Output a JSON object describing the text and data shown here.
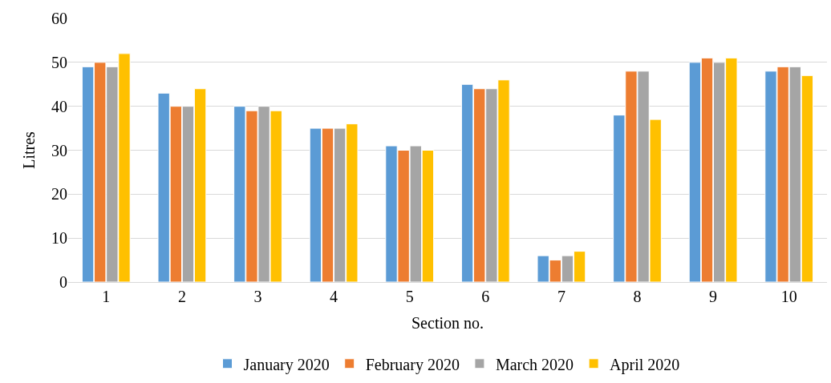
{
  "chart_data": {
    "type": "bar",
    "xlabel": "Section no.",
    "ylabel": "Litres",
    "categories": [
      "1",
      "2",
      "3",
      "4",
      "5",
      "6",
      "7",
      "8",
      "9",
      "10"
    ],
    "series": [
      {
        "name": "January 2020",
        "color": "#5b9bd5",
        "values": [
          49,
          43,
          40,
          35,
          31,
          45,
          6,
          38,
          50,
          48
        ]
      },
      {
        "name": "February 2020",
        "color": "#ed7d31",
        "values": [
          50,
          40,
          39,
          35,
          30,
          44,
          5,
          48,
          51,
          49
        ]
      },
      {
        "name": "March 2020",
        "color": "#a5a5a5",
        "values": [
          49,
          40,
          40,
          35,
          31,
          44,
          6,
          48,
          50,
          49
        ]
      },
      {
        "name": "April 2020",
        "color": "#ffc000",
        "values": [
          52,
          44,
          39,
          36,
          30,
          46,
          7,
          37,
          51,
          47
        ]
      }
    ],
    "ylim": [
      0,
      60
    ],
    "yticks": [
      0,
      10,
      20,
      30,
      40,
      50,
      60
    ],
    "grid": "y",
    "legend": "bottom"
  }
}
